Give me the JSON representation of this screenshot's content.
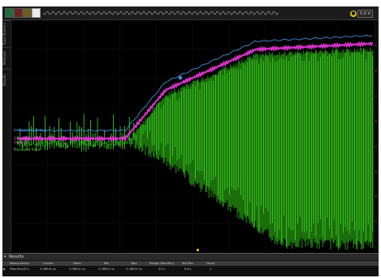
{
  "window": {
    "title": ""
  },
  "toolbar": {
    "buttons": [
      {
        "name": "run-stop-button",
        "color": "#1f6f3a"
      },
      {
        "name": "single-button",
        "color": "#6e2323"
      },
      {
        "name": "auto-button",
        "color": "#6b5f22"
      },
      {
        "name": "home-button",
        "color": "#4a4a4a"
      }
    ],
    "timebase_value": "5.0 V"
  },
  "side_tabs": [
    "Trace Markers",
    "Measure",
    "Results"
  ],
  "waveforms": {
    "labels": [
      "Smoothed Envelope",
      "Smoothed",
      "Sample",
      "Processed Trace"
    ],
    "colors": {
      "envelope": "#3f8fd6",
      "smoothed": "#d733c9",
      "signal": "#3fdc1f",
      "signal_dark": "#1b6d0d"
    },
    "marker_color": "#3f8fd6"
  },
  "results": {
    "title": "Results",
    "columns": [
      "Measurement",
      "Current",
      "Mean",
      "Min",
      "Max",
      "Range (Max-Min)",
      "Std Dev",
      "Count"
    ],
    "rows": [
      [
        "Rise time(F1)",
        "5.38E14 ns",
        "5.38E14 ns",
        "5.38E14 ns",
        "5.38E14 ns",
        "0.0 s",
        "0.0 s",
        "1"
      ]
    ]
  }
}
